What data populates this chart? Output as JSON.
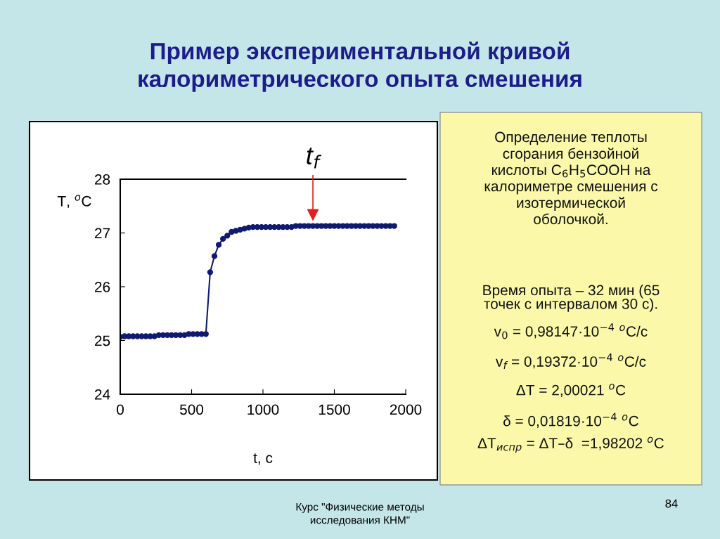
{
  "chart_data": {
    "type": "line",
    "title": "Пример экспериментальной кривой\nкалориметрического опыта смешения",
    "xlabel": "t, с",
    "ylabel": "T, $^{o}$C",
    "x": [
      0,
      30,
      60,
      90,
      120,
      150,
      180,
      210,
      240,
      270,
      300,
      330,
      360,
      390,
      420,
      450,
      480,
      510,
      540,
      570,
      600,
      630,
      660,
      690,
      720,
      750,
      780,
      810,
      840,
      870,
      900,
      930,
      960,
      990,
      1020,
      1050,
      1080,
      1110,
      1140,
      1170,
      1200,
      1230,
      1260,
      1290,
      1320,
      1350,
      1380,
      1410,
      1440,
      1470,
      1500,
      1530,
      1560,
      1590,
      1620,
      1650,
      1680,
      1710,
      1740,
      1770,
      1800,
      1830,
      1860,
      1890,
      1920
    ],
    "series": [
      {
        "color": "#101a70",
        "values": [
          25.065,
          25.078,
          25.078,
          25.078,
          25.078,
          25.078,
          25.078,
          25.078,
          25.078,
          25.1,
          25.1,
          25.1,
          25.1,
          25.1,
          25.1,
          25.1,
          25.12,
          25.12,
          25.12,
          25.12,
          25.12,
          26.27,
          26.57,
          26.78,
          26.89,
          26.95,
          27.02,
          27.04,
          27.06,
          27.08,
          27.1,
          27.11,
          27.11,
          27.11,
          27.11,
          27.11,
          27.11,
          27.11,
          27.11,
          27.11,
          27.11,
          27.13,
          27.13,
          27.13,
          27.13,
          27.13,
          27.13,
          27.13,
          27.13,
          27.13,
          27.13,
          27.13,
          27.13,
          27.13,
          27.13,
          27.13,
          27.13,
          27.13,
          27.13,
          27.13,
          27.13,
          27.13,
          27.13,
          27.13,
          27.13
        ]
      }
    ],
    "marker": "circle",
    "line_style": "solid",
    "xlim": [
      0,
      2000
    ],
    "xticks": [
      0,
      500,
      1000,
      1500,
      2000
    ],
    "ylim": [
      24,
      28
    ],
    "yticks": [
      24,
      25,
      26,
      27,
      28
    ],
    "grid": false,
    "legend": false,
    "annotations": [
      {
        "text": "t$_{f}$",
        "x": 1350,
        "y": 27.13
      },
      "Определение теплоты\nсгорания бензойной\nкислоты C$_{6}$H$_{5}$COOH на\nкалориметре смешения с\nизотермической\nоболочкой.",
      "Время опыта – 32 мин (65\nточек с интервалом 30 с).",
      "v$_{0}$ = 0,98147·10$^{−4}$ $^{o}$C/c",
      "v$_{f}$ = 0,19372·10$^{−4}$ $^{o}$C/c",
      "ΔT = 2,00021 $^{o}$C",
      "δ = 0,01819·10$^{−4}$ $^{o}$C",
      "ΔT$_{испр}$ = ΔT–δ  =1,98202 $^{o}$C",
      "Курс \"Физические методы\nисследования КНМ\"",
      "84"
    ]
  }
}
